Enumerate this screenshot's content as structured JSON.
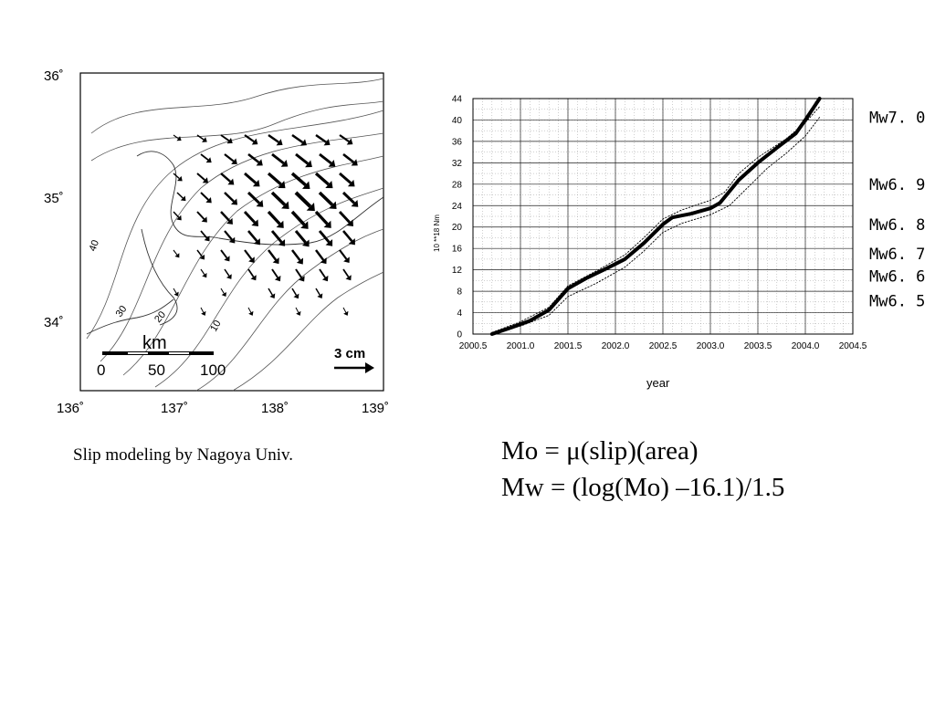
{
  "map": {
    "lat_labels": [
      "36˚",
      "35˚",
      "34˚"
    ],
    "lon_labels": [
      "136˚",
      "137˚",
      "138˚",
      "139˚"
    ],
    "contour_labels": [
      "40",
      "30",
      "20",
      "10"
    ],
    "scale_unit": "km",
    "scale_ticks": [
      "0",
      "50",
      "100"
    ],
    "vector_scale": "3 cm",
    "arrow_color": "#000000"
  },
  "caption": "Slip modeling by Nagoya Univ.",
  "formulas": {
    "mo": "Mo = μ(slip)(area)",
    "mw": "Mw = (log(Mo) –16.1)/1.5"
  },
  "chart_data": {
    "type": "line",
    "xlabel": "year",
    "ylabel": "10 **18 Nm",
    "xlim": [
      2000.5,
      2004.5
    ],
    "ylim": [
      0,
      44
    ],
    "x_ticks": [
      "2000.5",
      "2001.0",
      "2001.5",
      "2002.0",
      "2002.5",
      "2003.0",
      "2003.5",
      "2004.0",
      "2004.5"
    ],
    "y_ticks": [
      "0",
      "4",
      "8",
      "12",
      "16",
      "20",
      "24",
      "28",
      "32",
      "36",
      "40",
      "44"
    ],
    "grid": true,
    "series": [
      {
        "style": "solid",
        "x": [
          2000.7,
          2000.9,
          2001.1,
          2001.3,
          2001.5,
          2001.7,
          2001.9,
          2002.1,
          2002.3,
          2002.5,
          2002.6,
          2002.8,
          2003.0,
          2003.1,
          2003.3,
          2003.5,
          2003.7,
          2003.9,
          2004.0,
          2004.15
        ],
        "y": [
          0,
          1.2,
          2.5,
          4.5,
          8.5,
          10.5,
          12.2,
          14.0,
          17.0,
          20.5,
          21.8,
          22.5,
          23.5,
          24.5,
          28.8,
          32.0,
          34.8,
          37.5,
          40.0,
          44.0
        ]
      },
      {
        "style": "dotted",
        "x": [
          2000.7,
          2001.0,
          2001.3,
          2001.5,
          2001.8,
          2002.1,
          2002.3,
          2002.5,
          2002.7,
          2003.0,
          2003.15,
          2003.3,
          2003.5,
          2003.8,
          2004.0,
          2004.15
        ],
        "y": [
          0.3,
          2.3,
          5.0,
          9.0,
          11.8,
          14.8,
          18.0,
          21.5,
          23.2,
          25.0,
          26.5,
          30.0,
          33.0,
          36.5,
          39.5,
          42.5
        ]
      },
      {
        "style": "dotted",
        "x": [
          2000.7,
          2001.0,
          2001.3,
          2001.5,
          2001.8,
          2002.1,
          2002.3,
          2002.5,
          2002.7,
          2003.0,
          2003.2,
          2003.4,
          2003.6,
          2003.8,
          2004.0,
          2004.15
        ],
        "y": [
          0,
          1.5,
          3.5,
          7.0,
          9.5,
          12.5,
          15.5,
          19.0,
          20.7,
          22.3,
          24.0,
          27.5,
          31.0,
          33.8,
          37.0,
          40.5
        ]
      }
    ],
    "mw_labels": [
      {
        "text": "Mw7. 0",
        "y": 40.5
      },
      {
        "text": "Mw6. 9",
        "y": 28.0
      },
      {
        "text": "Mw6. 8",
        "y": 20.5
      },
      {
        "text": "Mw6. 7",
        "y": 15.0
      },
      {
        "text": "Mw6. 6",
        "y": 10.8
      },
      {
        "text": "Mw6. 5",
        "y": 6.2
      }
    ]
  }
}
